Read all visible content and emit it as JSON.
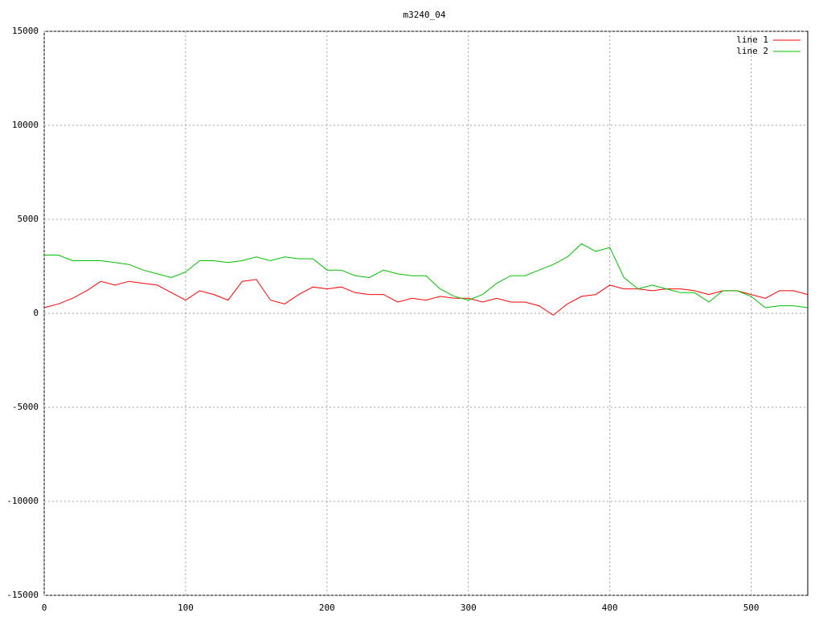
{
  "chart_data": {
    "type": "line",
    "title": "m3240_04",
    "x": [
      0,
      10,
      20,
      30,
      40,
      50,
      60,
      70,
      80,
      90,
      100,
      110,
      120,
      130,
      140,
      150,
      160,
      170,
      180,
      190,
      200,
      210,
      220,
      230,
      240,
      250,
      260,
      270,
      280,
      290,
      300,
      310,
      320,
      330,
      340,
      350,
      360,
      370,
      380,
      390,
      400,
      410,
      420,
      430,
      440,
      450,
      460,
      470,
      480,
      490,
      500,
      510,
      520,
      530,
      540
    ],
    "series": [
      {
        "name": "line 1",
        "color": "#ff0000",
        "values": [
          300,
          500,
          800,
          1200,
          1700,
          1500,
          1700,
          1600,
          1500,
          1100,
          700,
          1200,
          1000,
          700,
          1700,
          1800,
          700,
          500,
          1000,
          1400,
          1300,
          1400,
          1100,
          1000,
          1000,
          600,
          800,
          700,
          900,
          800,
          800,
          600,
          800,
          600,
          600,
          400,
          -100,
          500,
          900,
          1000,
          1500,
          1300,
          1300,
          1200,
          1300,
          1300,
          1200,
          1000,
          1200,
          1200,
          1000,
          800,
          1200,
          1200,
          1000
        ]
      },
      {
        "name": "line 2",
        "color": "#00c000",
        "values": [
          3100,
          3100,
          2800,
          2800,
          2800,
          2700,
          2600,
          2300,
          2100,
          1900,
          2200,
          2800,
          2800,
          2700,
          2800,
          3000,
          2800,
          3000,
          2900,
          2900,
          2300,
          2300,
          2000,
          1900,
          2300,
          2100,
          2000,
          2000,
          1300,
          900,
          700,
          1000,
          1600,
          2000,
          2000,
          2300,
          2600,
          3000,
          3700,
          3300,
          3500,
          1900,
          1300,
          1500,
          1300,
          1100,
          1100,
          600,
          1200,
          1200,
          900,
          300,
          400,
          400,
          300
        ]
      }
    ],
    "xlim": [
      0,
      540
    ],
    "xticks": [
      0,
      100,
      200,
      300,
      400,
      500
    ],
    "ylim": [
      -15000,
      15000
    ],
    "yticks": [
      -15000,
      -10000,
      -5000,
      0,
      5000,
      10000,
      15000
    ],
    "grid": true,
    "legend": "top-right"
  }
}
